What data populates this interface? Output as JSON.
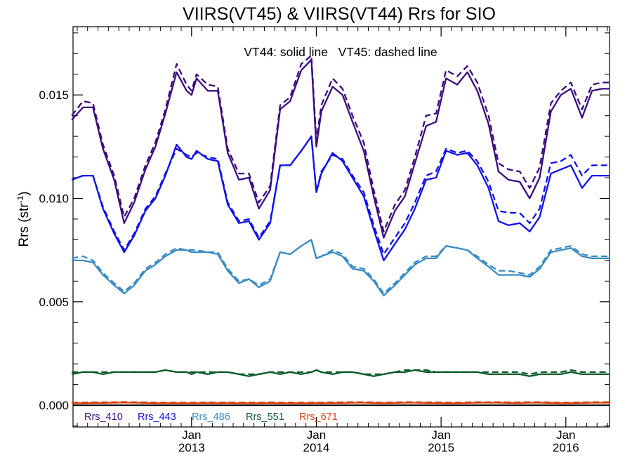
{
  "chart_data": {
    "type": "line",
    "title": "VIIRS(VT45) & VIIRS(VT44)  Rrs for SIO",
    "annotation": "VT44: solid line   VT45: dashed line",
    "ylabel": "Rrs (str",
    "ylabel_sup": "-1",
    "ylabel_close": ")",
    "ylim": [
      -0.00105,
      0.0183
    ],
    "yticks": [
      0.0,
      0.005,
      0.01,
      0.015
    ],
    "ytick_labels": [
      "0.000",
      "0.005",
      "0.010",
      "0.015"
    ],
    "xlim": [
      2012.05,
      2016.35
    ],
    "xticks": [
      {
        "pos": 2013.0,
        "label1": "Jan",
        "label2": "2013"
      },
      {
        "pos": 2014.0,
        "label1": "Jan",
        "label2": "2014"
      },
      {
        "pos": 2015.0,
        "label1": "Jan",
        "label2": "2015"
      },
      {
        "pos": 2016.0,
        "label1": "Jan",
        "label2": "2016"
      }
    ],
    "zero_line": 0.0,
    "x": [
      2012.04,
      2012.13,
      2012.21,
      2012.29,
      2012.38,
      2012.46,
      2012.54,
      2012.63,
      2012.71,
      2012.79,
      2012.88,
      2012.96,
      2013.0,
      2013.04,
      2013.13,
      2013.21,
      2013.29,
      2013.38,
      2013.46,
      2013.54,
      2013.63,
      2013.71,
      2013.79,
      2013.88,
      2013.96,
      2014.0,
      2014.04,
      2014.13,
      2014.21,
      2014.29,
      2014.38,
      2014.46,
      2014.54,
      2014.63,
      2014.71,
      2014.79,
      2014.88,
      2014.96,
      2015.04,
      2015.13,
      2015.21,
      2015.29,
      2015.38,
      2015.46,
      2015.54,
      2015.63,
      2015.71,
      2015.79,
      2015.88,
      2015.96,
      2016.04,
      2016.13,
      2016.21,
      2016.29,
      2016.35
    ],
    "series": [
      {
        "name": "Rrs_410",
        "color": "#3c0d7c",
        "vt44": [
          0.0138,
          0.0144,
          0.0144,
          0.0124,
          0.0109,
          0.0088,
          0.0098,
          0.0114,
          0.0125,
          0.0141,
          0.0161,
          0.0152,
          0.015,
          0.0158,
          0.0152,
          0.0152,
          0.0122,
          0.0109,
          0.011,
          0.0095,
          0.0104,
          0.0143,
          0.0147,
          0.0162,
          0.0167,
          0.0125,
          0.0142,
          0.0154,
          0.015,
          0.0137,
          0.0123,
          0.0101,
          0.0081,
          0.0094,
          0.0101,
          0.0117,
          0.0135,
          0.0137,
          0.0158,
          0.0155,
          0.0161,
          0.0152,
          0.0136,
          0.0113,
          0.0109,
          0.0108,
          0.01,
          0.011,
          0.0142,
          0.015,
          0.0153,
          0.0139,
          0.0152,
          0.0153,
          0.0153
        ],
        "vt45": [
          0.014,
          0.0147,
          0.0146,
          0.0126,
          0.0111,
          0.0091,
          0.01,
          0.0116,
          0.0127,
          0.0143,
          0.0165,
          0.0155,
          0.0152,
          0.016,
          0.0155,
          0.0154,
          0.0124,
          0.0112,
          0.0112,
          0.0098,
          0.0106,
          0.0145,
          0.0149,
          0.0165,
          0.0169,
          0.0128,
          0.0145,
          0.0158,
          0.0153,
          0.014,
          0.0127,
          0.0104,
          0.0084,
          0.0097,
          0.0104,
          0.012,
          0.014,
          0.0141,
          0.0162,
          0.0159,
          0.0164,
          0.0156,
          0.014,
          0.0117,
          0.0114,
          0.0113,
          0.0105,
          0.0115,
          0.0146,
          0.0152,
          0.0156,
          0.0143,
          0.0155,
          0.0156,
          0.0156
        ]
      },
      {
        "name": "Rrs_443",
        "color": "#1010e8",
        "vt44": [
          0.0109,
          0.0111,
          0.0111,
          0.0095,
          0.0083,
          0.0074,
          0.0082,
          0.0094,
          0.01,
          0.0111,
          0.0126,
          0.012,
          0.0119,
          0.0123,
          0.0119,
          0.0118,
          0.0097,
          0.0088,
          0.0089,
          0.008,
          0.0088,
          0.0116,
          0.0116,
          0.0123,
          0.013,
          0.0103,
          0.0112,
          0.0122,
          0.0118,
          0.011,
          0.0101,
          0.0085,
          0.007,
          0.0078,
          0.0085,
          0.0095,
          0.0109,
          0.011,
          0.0123,
          0.0121,
          0.0122,
          0.0116,
          0.0105,
          0.0089,
          0.0087,
          0.0088,
          0.0084,
          0.0091,
          0.0112,
          0.0114,
          0.0116,
          0.0105,
          0.0111,
          0.0111,
          0.0111
        ],
        "vt45": [
          0.0109,
          0.0111,
          0.0111,
          0.0096,
          0.0084,
          0.0075,
          0.0083,
          0.0095,
          0.0101,
          0.0112,
          0.0124,
          0.0121,
          0.012,
          0.0122,
          0.012,
          0.0119,
          0.0098,
          0.0089,
          0.009,
          0.0081,
          0.0089,
          0.0116,
          0.0116,
          0.0123,
          0.013,
          0.0103,
          0.0113,
          0.0121,
          0.0119,
          0.0111,
          0.0103,
          0.0087,
          0.0073,
          0.0081,
          0.0088,
          0.0098,
          0.0111,
          0.0113,
          0.0124,
          0.0122,
          0.0123,
          0.0118,
          0.0108,
          0.0094,
          0.0093,
          0.0093,
          0.0088,
          0.0095,
          0.0117,
          0.0118,
          0.0121,
          0.0111,
          0.0116,
          0.0116,
          0.0116
        ]
      },
      {
        "name": "Rrs_486",
        "color": "#3a8cc4",
        "vt44": [
          0.007,
          0.007,
          0.0069,
          0.0063,
          0.0058,
          0.0054,
          0.0058,
          0.0065,
          0.0068,
          0.0072,
          0.0075,
          0.0075,
          0.0074,
          0.0074,
          0.0074,
          0.0073,
          0.0065,
          0.0059,
          0.0061,
          0.0057,
          0.006,
          0.0074,
          0.0073,
          0.0077,
          0.008,
          0.0071,
          0.0072,
          0.0074,
          0.0072,
          0.0066,
          0.0065,
          0.006,
          0.0053,
          0.0058,
          0.0063,
          0.0068,
          0.0071,
          0.0071,
          0.0077,
          0.0076,
          0.0075,
          0.0071,
          0.0067,
          0.0063,
          0.0063,
          0.0063,
          0.0062,
          0.0066,
          0.0074,
          0.0075,
          0.0076,
          0.0072,
          0.0071,
          0.0071,
          0.0071
        ],
        "vt45": [
          0.0071,
          0.0072,
          0.007,
          0.0064,
          0.0059,
          0.0055,
          0.0059,
          0.0066,
          0.0069,
          0.0073,
          0.0076,
          0.0075,
          0.0075,
          0.0075,
          0.0074,
          0.0074,
          0.0066,
          0.006,
          0.0061,
          0.0058,
          0.0061,
          0.0074,
          0.0073,
          0.0077,
          0.008,
          0.0071,
          0.0072,
          0.0075,
          0.0073,
          0.0067,
          0.0066,
          0.0061,
          0.0054,
          0.0059,
          0.0064,
          0.0069,
          0.0072,
          0.0072,
          0.0077,
          0.0076,
          0.0075,
          0.0072,
          0.0068,
          0.0065,
          0.0065,
          0.0064,
          0.0063,
          0.0067,
          0.0075,
          0.0076,
          0.0077,
          0.0073,
          0.0072,
          0.0072,
          0.0072
        ]
      },
      {
        "name": "Rrs_551",
        "color": "#0b5a2a",
        "vt44": [
          0.0015,
          0.0016,
          0.0016,
          0.0015,
          0.0016,
          0.0016,
          0.0016,
          0.0016,
          0.0016,
          0.0017,
          0.0016,
          0.0016,
          0.0015,
          0.0016,
          0.0015,
          0.0016,
          0.0016,
          0.0015,
          0.0014,
          0.0015,
          0.0016,
          0.0015,
          0.0016,
          0.0015,
          0.0016,
          0.0017,
          0.0016,
          0.0015,
          0.0016,
          0.0016,
          0.0015,
          0.0014,
          0.0015,
          0.0016,
          0.0016,
          0.0017,
          0.0016,
          0.0016,
          0.0016,
          0.0016,
          0.0016,
          0.0016,
          0.0015,
          0.0015,
          0.0015,
          0.0015,
          0.0014,
          0.0015,
          0.0015,
          0.0015,
          0.0016,
          0.0015,
          0.0015,
          0.0015,
          0.0015
        ],
        "vt45": [
          0.0016,
          0.0016,
          0.0016,
          0.0016,
          0.0016,
          0.0016,
          0.0016,
          0.0016,
          0.0016,
          0.0017,
          0.0016,
          0.0016,
          0.0016,
          0.0016,
          0.0016,
          0.0016,
          0.0016,
          0.0015,
          0.0015,
          0.0015,
          0.0016,
          0.0016,
          0.0016,
          0.0016,
          0.0016,
          0.0017,
          0.0016,
          0.0016,
          0.0016,
          0.0016,
          0.0015,
          0.0015,
          0.0015,
          0.0016,
          0.0017,
          0.0017,
          0.0017,
          0.0016,
          0.0016,
          0.0016,
          0.0016,
          0.0016,
          0.0016,
          0.0016,
          0.0016,
          0.0016,
          0.0015,
          0.0016,
          0.0016,
          0.0016,
          0.0017,
          0.0016,
          0.0016,
          0.0016,
          0.0016
        ]
      },
      {
        "name": "Rrs_671",
        "color": "#d9420d",
        "vt44": [
          0.0001,
          0.0001,
          0.00011,
          0.00011,
          0.00012,
          0.00013,
          0.00012,
          0.00011,
          0.0001,
          0.0001,
          0.0001,
          0.0001,
          0.0001,
          0.0001,
          0.00011,
          0.0001,
          0.00011,
          0.0001,
          0.0001,
          0.0001,
          0.00011,
          0.0001,
          0.0001,
          0.0001,
          0.0001,
          0.00011,
          0.0001,
          0.00011,
          0.00011,
          0.00012,
          0.00012,
          0.00011,
          0.0001,
          0.00011,
          0.00012,
          0.00012,
          0.00011,
          0.00011,
          0.0001,
          0.0001,
          0.00011,
          0.00012,
          0.00012,
          0.00012,
          0.00011,
          0.00011,
          0.00012,
          0.00012,
          0.00011,
          0.0001,
          0.0001,
          0.00011,
          0.00012,
          0.00012,
          0.00012
        ],
        "vt45": [
          0.00013,
          0.00013,
          0.00014,
          0.00014,
          0.00015,
          0.00016,
          0.00015,
          0.00014,
          0.00013,
          0.00013,
          0.00013,
          0.00013,
          0.00013,
          0.00013,
          0.00014,
          0.00013,
          0.00014,
          0.00013,
          0.00013,
          0.00013,
          0.00014,
          0.00013,
          0.00013,
          0.00013,
          0.00013,
          0.00014,
          0.00013,
          0.00014,
          0.00014,
          0.00015,
          0.00015,
          0.00014,
          0.00013,
          0.00014,
          0.00015,
          0.00015,
          0.00014,
          0.00014,
          0.00013,
          0.00013,
          0.00014,
          0.00015,
          0.00015,
          0.00015,
          0.00014,
          0.00014,
          0.00015,
          0.00015,
          0.00014,
          0.00013,
          0.00013,
          0.00014,
          0.00015,
          0.00015,
          0.00015
        ]
      }
    ],
    "legend": [
      "Rrs_410",
      "Rrs_443",
      "Rrs_486",
      "Rrs_551",
      "Rrs_671"
    ],
    "legend_placement": "bottom-left",
    "grid": false
  }
}
